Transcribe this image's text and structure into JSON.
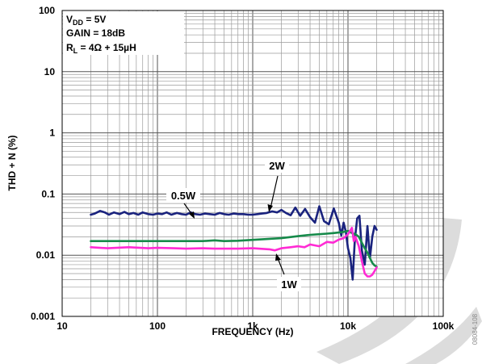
{
  "colors": {
    "background": "#ffffff",
    "grid_major": "#555555",
    "grid_minor": "#9a9a9a",
    "series_2w": "#1a237e",
    "series_05w": "#168a4a",
    "series_1w": "#ff2ad4",
    "watermark": "#d9d9d9"
  },
  "chart_data": {
    "type": "line",
    "title": "",
    "xlabel": "FREQUENCY (Hz)",
    "ylabel": "THD + N (%)",
    "x_scale": "log",
    "y_scale": "log",
    "xlim": [
      10,
      100000
    ],
    "ylim": [
      0.001,
      100
    ],
    "grid": true,
    "x_ticks": [
      10,
      100,
      1000,
      10000,
      100000
    ],
    "x_tick_labels": [
      "10",
      "100",
      "1k",
      "10k",
      "100k"
    ],
    "y_ticks": [
      0.001,
      0.01,
      0.1,
      1,
      10,
      100
    ],
    "y_tick_labels": [
      "0.001",
      "0.01",
      "0.1",
      "1",
      "10",
      "100"
    ],
    "conditions": {
      "vdd": {
        "main": "V",
        "sub": "DD",
        "rest": " = 5V"
      },
      "gain": "GAIN = 18dB",
      "rl": {
        "main": "R",
        "sub": "L",
        "rest": " = 4Ω + 15µH"
      }
    },
    "annotations": [
      "2W",
      "0.5W",
      "1W"
    ],
    "figure_id": "08084-108",
    "series": [
      {
        "name": "2W",
        "x": [
          20,
          22,
          25,
          28,
          31,
          35,
          40,
          45,
          50,
          56,
          63,
          70,
          80,
          90,
          100,
          112,
          125,
          140,
          160,
          180,
          200,
          224,
          250,
          280,
          315,
          355,
          400,
          450,
          500,
          560,
          630,
          710,
          800,
          900,
          1000,
          1120,
          1250,
          1400,
          1600,
          1800,
          2000,
          2240,
          2500,
          2800,
          3150,
          3550,
          4000,
          4500,
          5000,
          5600,
          6300,
          7100,
          8000,
          8500,
          9000,
          9500,
          10000,
          10600,
          11200,
          11800,
          12500,
          13200,
          14000,
          15000,
          16000,
          17000,
          18000,
          19000,
          20000
        ],
        "values": [
          0.046,
          0.048,
          0.053,
          0.05,
          0.046,
          0.05,
          0.047,
          0.051,
          0.047,
          0.049,
          0.046,
          0.05,
          0.047,
          0.046,
          0.048,
          0.047,
          0.05,
          0.046,
          0.049,
          0.047,
          0.046,
          0.05,
          0.047,
          0.046,
          0.048,
          0.047,
          0.046,
          0.049,
          0.047,
          0.046,
          0.048,
          0.047,
          0.047,
          0.046,
          0.046,
          0.047,
          0.048,
          0.049,
          0.052,
          0.05,
          0.055,
          0.049,
          0.045,
          0.06,
          0.044,
          0.057,
          0.042,
          0.034,
          0.063,
          0.036,
          0.032,
          0.058,
          0.034,
          0.021,
          0.034,
          0.024,
          0.013,
          0.009,
          0.004,
          0.018,
          0.04,
          0.044,
          0.012,
          0.007,
          0.03,
          0.009,
          0.02,
          0.03,
          0.026
        ]
      },
      {
        "name": "0.5W",
        "x": [
          20,
          30,
          50,
          80,
          100,
          150,
          200,
          300,
          400,
          500,
          700,
          1000,
          1500,
          2000,
          2500,
          3000,
          4000,
          5000,
          6000,
          7000,
          8000,
          9000,
          10000,
          11000,
          12000,
          13000,
          14000,
          15000,
          16000,
          17000,
          18000,
          19000,
          20000
        ],
        "values": [
          0.017,
          0.017,
          0.017,
          0.017,
          0.017,
          0.017,
          0.017,
          0.017,
          0.0175,
          0.017,
          0.0172,
          0.0178,
          0.0185,
          0.019,
          0.0198,
          0.0205,
          0.0215,
          0.022,
          0.0225,
          0.023,
          0.0235,
          0.024,
          0.025,
          0.023,
          0.022,
          0.02,
          0.016,
          0.013,
          0.011,
          0.009,
          0.0075,
          0.0068,
          0.0065
        ]
      },
      {
        "name": "1W",
        "x": [
          20,
          30,
          50,
          80,
          100,
          150,
          200,
          300,
          400,
          500,
          700,
          1000,
          1500,
          1700,
          2000,
          2500,
          3000,
          3500,
          4000,
          5000,
          6000,
          7000,
          8000,
          9000,
          10000,
          11000,
          11500,
          12000,
          13000,
          14000,
          15000,
          16000,
          17000,
          18000,
          19000,
          20000
        ],
        "values": [
          0.0135,
          0.013,
          0.0135,
          0.013,
          0.0132,
          0.013,
          0.0128,
          0.013,
          0.0128,
          0.0128,
          0.0128,
          0.013,
          0.0125,
          0.012,
          0.013,
          0.0135,
          0.014,
          0.0135,
          0.015,
          0.014,
          0.0165,
          0.016,
          0.018,
          0.019,
          0.022,
          0.028,
          0.017,
          0.02,
          0.014,
          0.008,
          0.005,
          0.0045,
          0.0045,
          0.0048,
          0.0055,
          0.0063
        ]
      }
    ]
  }
}
